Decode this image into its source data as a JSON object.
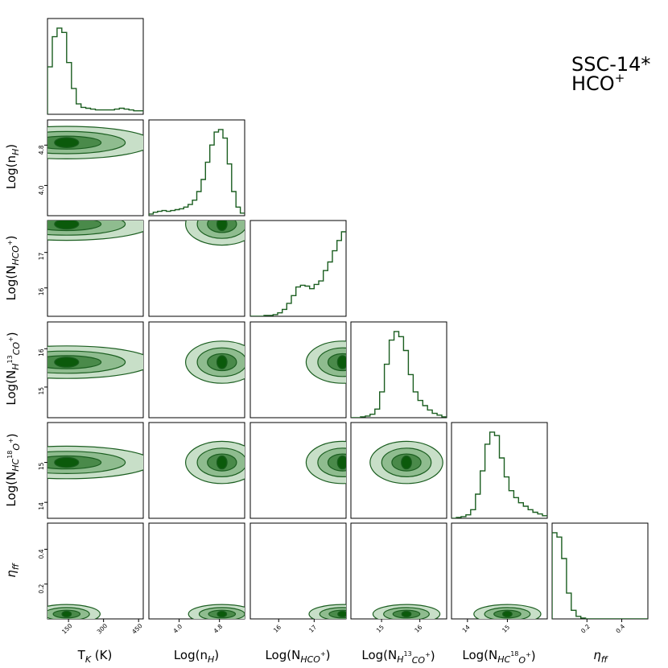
{
  "title": {
    "line1": "SSC-14*",
    "line2": "HCO"
  },
  "colors": {
    "line": "#1b5e20",
    "fill_outer": "#c8dfc8",
    "fill_mid": "#8fbc8f",
    "fill_inner": "#4a8a4a",
    "fill_core": "#0b5a0b",
    "axes": "#000000"
  },
  "chart_data": {
    "type": "corner",
    "parameters": [
      {
        "key": "tk",
        "label": "T_K (K)",
        "ticks": [
          150,
          300,
          450
        ],
        "tick_labels": [
          "150",
          "300",
          "450"
        ],
        "range": [
          60,
          470
        ]
      },
      {
        "key": "nh",
        "label": "Log(n_H)",
        "ticks": [
          4.0,
          4.8
        ],
        "tick_labels": [
          "4.0",
          "4.8"
        ],
        "range": [
          3.4,
          5.3
        ]
      },
      {
        "key": "nhco",
        "label": "Log(N_HCO+)",
        "ticks": [
          16,
          17
        ],
        "tick_labels": [
          "16",
          "17"
        ],
        "range": [
          15.2,
          17.9
        ]
      },
      {
        "key": "nh13",
        "label": "Log(N_H13CO+)",
        "ticks": [
          15,
          16
        ],
        "tick_labels": [
          "15",
          "16"
        ],
        "range": [
          14.2,
          16.7
        ]
      },
      {
        "key": "nhc18",
        "label": "Log(N_HC18O+)",
        "ticks": [
          14,
          15
        ],
        "tick_labels": [
          "14",
          "15"
        ],
        "range": [
          13.6,
          16.0
        ]
      },
      {
        "key": "eta",
        "label": "η_ff",
        "ticks": [
          0.2,
          0.4
        ],
        "tick_labels": [
          "0.2",
          "0.4"
        ],
        "range": [
          0.0,
          0.55
        ]
      }
    ],
    "histograms": [
      {
        "key": "tk",
        "values": [
          0.55,
          0.9,
          1.0,
          0.95,
          0.6,
          0.3,
          0.12,
          0.08,
          0.07,
          0.06,
          0.05,
          0.05,
          0.05,
          0.05,
          0.06,
          0.07,
          0.06,
          0.05,
          0.04,
          0.04
        ]
      },
      {
        "key": "nh",
        "values": [
          0.02,
          0.04,
          0.05,
          0.06,
          0.05,
          0.06,
          0.07,
          0.08,
          0.1,
          0.13,
          0.18,
          0.28,
          0.42,
          0.62,
          0.82,
          0.97,
          1.0,
          0.9,
          0.6,
          0.28,
          0.1,
          0.03
        ]
      },
      {
        "key": "nhco",
        "values": [
          0.0,
          0.0,
          0.0,
          0.01,
          0.01,
          0.02,
          0.04,
          0.08,
          0.15,
          0.24,
          0.34,
          0.36,
          0.35,
          0.32,
          0.37,
          0.41,
          0.53,
          0.63,
          0.76,
          0.88,
          0.98
        ]
      },
      {
        "key": "nh13",
        "values": [
          0.0,
          0.0,
          0.01,
          0.02,
          0.04,
          0.1,
          0.3,
          0.62,
          0.9,
          1.0,
          0.94,
          0.78,
          0.5,
          0.3,
          0.2,
          0.14,
          0.09,
          0.05,
          0.03,
          0.01
        ]
      },
      {
        "key": "nhc18",
        "values": [
          0.0,
          0.01,
          0.02,
          0.04,
          0.1,
          0.28,
          0.55,
          0.86,
          1.0,
          0.96,
          0.7,
          0.48,
          0.32,
          0.24,
          0.18,
          0.14,
          0.1,
          0.07,
          0.05,
          0.03
        ]
      },
      {
        "key": "eta",
        "values": [
          1.0,
          0.95,
          0.7,
          0.3,
          0.1,
          0.03,
          0.01,
          0.0,
          0.0,
          0.0,
          0.0,
          0.0,
          0.0,
          0.0,
          0.0,
          0.0,
          0.0,
          0.0,
          0.0,
          0.0
        ]
      }
    ],
    "contour_levels": 4,
    "notes": "Nested density contours (outer light → inner dark) in every off-diagonal panel"
  }
}
